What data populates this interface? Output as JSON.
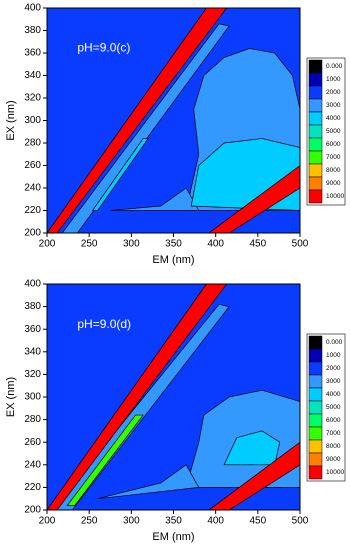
{
  "chart_data": [
    {
      "type": "contour",
      "annotation": "pH=9.0(c)",
      "xlabel": "EM (nm)",
      "ylabel": "EX (nm)",
      "xlim": [
        200,
        500
      ],
      "ylim": [
        200,
        400
      ],
      "xticks": [
        200,
        250,
        300,
        350,
        400,
        450,
        500
      ],
      "yticks": [
        200,
        220,
        240,
        260,
        280,
        300,
        320,
        340,
        360,
        380,
        400
      ],
      "levels": [
        {
          "value": 0,
          "label": "0.000"
        },
        1000,
        2000,
        3000,
        4000,
        5000,
        6000,
        7000,
        8000,
        9000,
        10000
      ],
      "colors": [
        "#000000",
        "#0000b4",
        "#0a3cff",
        "#3399ff",
        "#00ccff",
        "#00e5c0",
        "#00ff66",
        "#33ff00",
        "#ffc000",
        "#ff8000",
        "#ff0000"
      ]
    },
    {
      "type": "contour",
      "annotation": "pH=9.0(d)",
      "xlabel": "EM (nm)",
      "ylabel": "EX (nm)",
      "xlim": [
        200,
        500
      ],
      "ylim": [
        200,
        400
      ],
      "xticks": [
        200,
        250,
        300,
        350,
        400,
        450,
        500
      ],
      "yticks": [
        200,
        220,
        240,
        260,
        280,
        300,
        320,
        340,
        360,
        380,
        400
      ],
      "levels": [
        {
          "value": 0,
          "label": "0.000"
        },
        1000,
        2000,
        3000,
        4000,
        5000,
        6000,
        7000,
        8000,
        9000,
        10000
      ],
      "colors": [
        "#000000",
        "#0000b4",
        "#0a3cff",
        "#3399ff",
        "#00ccff",
        "#00e5c0",
        "#00ff66",
        "#33ff00",
        "#ffc000",
        "#ff8000",
        "#ff0000"
      ]
    }
  ]
}
